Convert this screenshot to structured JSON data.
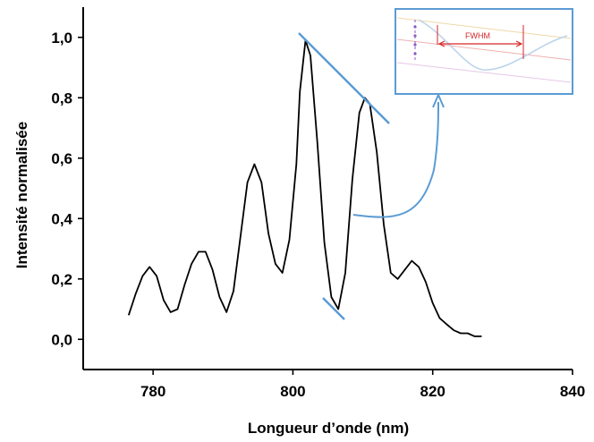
{
  "chart_data": {
    "type": "line",
    "xlabel": "Longueur d’onde (nm)",
    "ylabel": "Intensité normalisée",
    "xlim": [
      770,
      840
    ],
    "ylim": [
      -0.1,
      1.1
    ],
    "x_ticks": [
      780,
      800,
      820,
      840
    ],
    "x_tick_labels": [
      "780",
      "800",
      "820",
      "840"
    ],
    "y_ticks": [
      0.0,
      0.2,
      0.4,
      0.6,
      0.8,
      1.0
    ],
    "y_tick_labels": [
      "0,0",
      "0,2",
      "0,4",
      "0,6",
      "0,8",
      "1,0"
    ],
    "grid": false,
    "line_color": "#000000",
    "annotation_color": "#5b9bd5",
    "series": [
      {
        "x": [
          776.5,
          777.5,
          778.5,
          779.5,
          780.5,
          781.5,
          782.5,
          783.5,
          784.5,
          785.5,
          786.5,
          787.5,
          788.5,
          789.5,
          790.5,
          791.5,
          792.5,
          793.5,
          794.5,
          795.5,
          796.5,
          797.5,
          798.5,
          799.5,
          800.5,
          801.0,
          801.8,
          802.5,
          803.5,
          804.5,
          805.5,
          806.5,
          807.5,
          808.5,
          809.5,
          810.3,
          811.0,
          812.0,
          813.0,
          814.0,
          815.0,
          816.0,
          817.0,
          818.0,
          819.0,
          820.0,
          821.0,
          822.0,
          823.0,
          824.0,
          825.0,
          826.0,
          827.0
        ],
        "y": [
          0.08,
          0.15,
          0.21,
          0.24,
          0.21,
          0.13,
          0.09,
          0.1,
          0.18,
          0.25,
          0.29,
          0.29,
          0.23,
          0.14,
          0.09,
          0.16,
          0.34,
          0.52,
          0.58,
          0.52,
          0.35,
          0.25,
          0.22,
          0.33,
          0.58,
          0.82,
          0.99,
          0.94,
          0.65,
          0.32,
          0.14,
          0.1,
          0.22,
          0.53,
          0.75,
          0.8,
          0.78,
          0.62,
          0.38,
          0.22,
          0.2,
          0.23,
          0.26,
          0.24,
          0.19,
          0.12,
          0.07,
          0.05,
          0.03,
          0.02,
          0.02,
          0.01,
          0.01
        ]
      }
    ],
    "inset": {
      "label": "FWHM"
    }
  }
}
